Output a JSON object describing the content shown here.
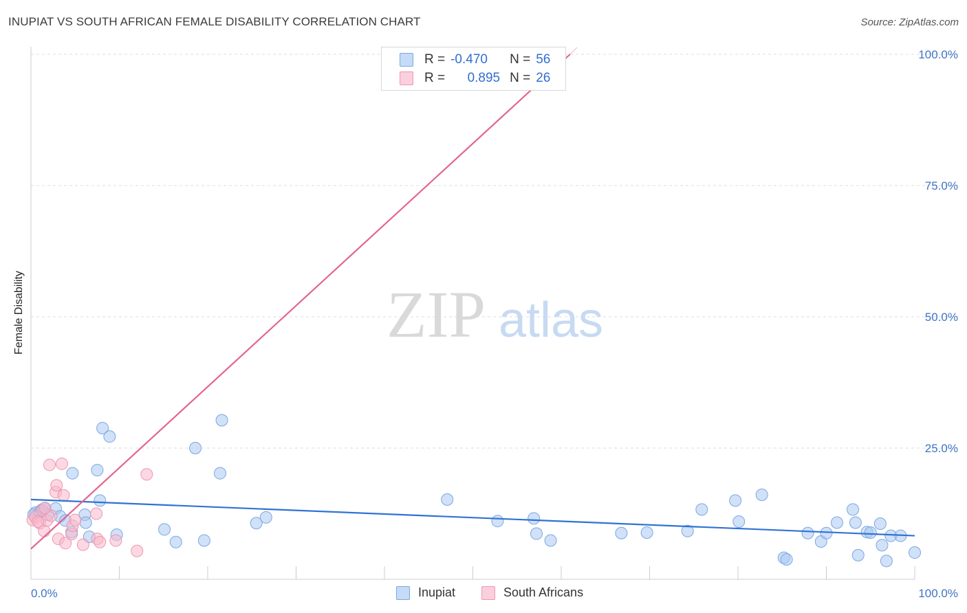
{
  "title": "INUPIAT VS SOUTH AFRICAN FEMALE DISABILITY CORRELATION CHART",
  "source": "Source: ZipAtlas.com",
  "watermark": {
    "zip": "ZIP",
    "atlas": "atlas"
  },
  "legend": {
    "rows": [
      {
        "r_label": "R =",
        "r_value": "-0.470",
        "n_label": "N =",
        "n_value": "56",
        "color": "#a9c9f3"
      },
      {
        "r_label": "R =",
        "r_value": "0.895",
        "n_label": "N =",
        "n_value": "26",
        "color": "#f7b8cb"
      }
    ]
  },
  "bottom_legend": [
    {
      "label": "Inupiat",
      "color": "#a9c9f3"
    },
    {
      "label": "South Africans",
      "color": "#f7b8cb"
    }
  ],
  "chart_data": {
    "type": "scatter",
    "title": "INUPIAT VS SOUTH AFRICAN FEMALE DISABILITY CORRELATION CHART",
    "xlabel": "",
    "ylabel": "Female Disability",
    "xlim": [
      0,
      100
    ],
    "ylim": [
      0,
      100
    ],
    "x_tick_labels": [
      "0.0%",
      "100.0%"
    ],
    "y_tick_values": [
      25,
      50,
      75,
      100
    ],
    "y_tick_labels": [
      "25.0%",
      "50.0%",
      "75.0%",
      "100.0%"
    ],
    "grid": true,
    "series": [
      {
        "name": "Inupiat",
        "color": "#a9c9f3",
        "stroke": "#7aa7e2",
        "trend": {
          "color": "#2f72d4",
          "x0": 0,
          "y0": 15.2,
          "x1": 100,
          "y1": 8.3
        },
        "points": [
          [
            0.5,
            12.7
          ],
          [
            1.2,
            13.2
          ],
          [
            1.5,
            13.5
          ],
          [
            1.9,
            12.3
          ],
          [
            2.8,
            13.5
          ],
          [
            3.3,
            12.0
          ],
          [
            3.9,
            11.2
          ],
          [
            4.6,
            9.0
          ],
          [
            4.7,
            20.2
          ],
          [
            6.1,
            12.3
          ],
          [
            6.2,
            10.8
          ],
          [
            6.6,
            8.1
          ],
          [
            7.5,
            20.8
          ],
          [
            7.8,
            15.0
          ],
          [
            8.1,
            28.8
          ],
          [
            8.9,
            27.2
          ],
          [
            9.7,
            8.5
          ],
          [
            15.1,
            9.5
          ],
          [
            16.4,
            7.1
          ],
          [
            18.6,
            25.0
          ],
          [
            19.6,
            7.4
          ],
          [
            21.4,
            20.2
          ],
          [
            21.6,
            30.3
          ],
          [
            25.5,
            10.7
          ],
          [
            26.6,
            11.8
          ],
          [
            47.1,
            15.2
          ],
          [
            52.8,
            11.1
          ],
          [
            56.9,
            11.6
          ],
          [
            57.2,
            8.7
          ],
          [
            58.8,
            7.4
          ],
          [
            66.8,
            8.8
          ],
          [
            69.7,
            8.9
          ],
          [
            74.3,
            9.2
          ],
          [
            75.9,
            13.3
          ],
          [
            79.7,
            15.0
          ],
          [
            80.1,
            11.0
          ],
          [
            82.7,
            16.1
          ],
          [
            85.2,
            4.1
          ],
          [
            85.5,
            3.8
          ],
          [
            87.9,
            8.8
          ],
          [
            89.4,
            7.2
          ],
          [
            90.0,
            8.8
          ],
          [
            91.2,
            10.8
          ],
          [
            93.0,
            13.3
          ],
          [
            93.3,
            10.8
          ],
          [
            93.6,
            4.6
          ],
          [
            94.6,
            9.0
          ],
          [
            95.0,
            8.9
          ],
          [
            96.1,
            10.6
          ],
          [
            96.3,
            6.5
          ],
          [
            96.8,
            3.5
          ],
          [
            97.3,
            8.3
          ],
          [
            98.4,
            8.3
          ],
          [
            100.0,
            5.1
          ],
          [
            0.3,
            12.3
          ],
          [
            1.0,
            12.8
          ]
        ]
      },
      {
        "name": "South Africans",
        "color": "#f7b8cb",
        "stroke": "#ee96b1",
        "trend": {
          "color": "#e3648e",
          "x0": 0,
          "y0": 5.8,
          "x1": 61,
          "y1": 100
        },
        "points": [
          [
            0.2,
            11.3
          ],
          [
            0.5,
            11.9
          ],
          [
            1.0,
            10.7
          ],
          [
            1.3,
            13.1
          ],
          [
            1.5,
            9.2
          ],
          [
            1.8,
            11.2
          ],
          [
            2.1,
            21.8
          ],
          [
            2.3,
            12.1
          ],
          [
            2.8,
            16.6
          ],
          [
            2.9,
            17.9
          ],
          [
            3.1,
            7.7
          ],
          [
            3.5,
            22.0
          ],
          [
            3.7,
            16.0
          ],
          [
            3.9,
            6.9
          ],
          [
            4.6,
            8.6
          ],
          [
            4.7,
            10.2
          ],
          [
            5.0,
            11.3
          ],
          [
            5.9,
            6.6
          ],
          [
            7.4,
            12.5
          ],
          [
            7.5,
            7.7
          ],
          [
            7.8,
            7.1
          ],
          [
            9.6,
            7.4
          ],
          [
            12.0,
            5.4
          ],
          [
            13.1,
            20.0
          ],
          [
            0.8,
            11.0
          ],
          [
            1.6,
            13.6
          ]
        ]
      }
    ]
  }
}
